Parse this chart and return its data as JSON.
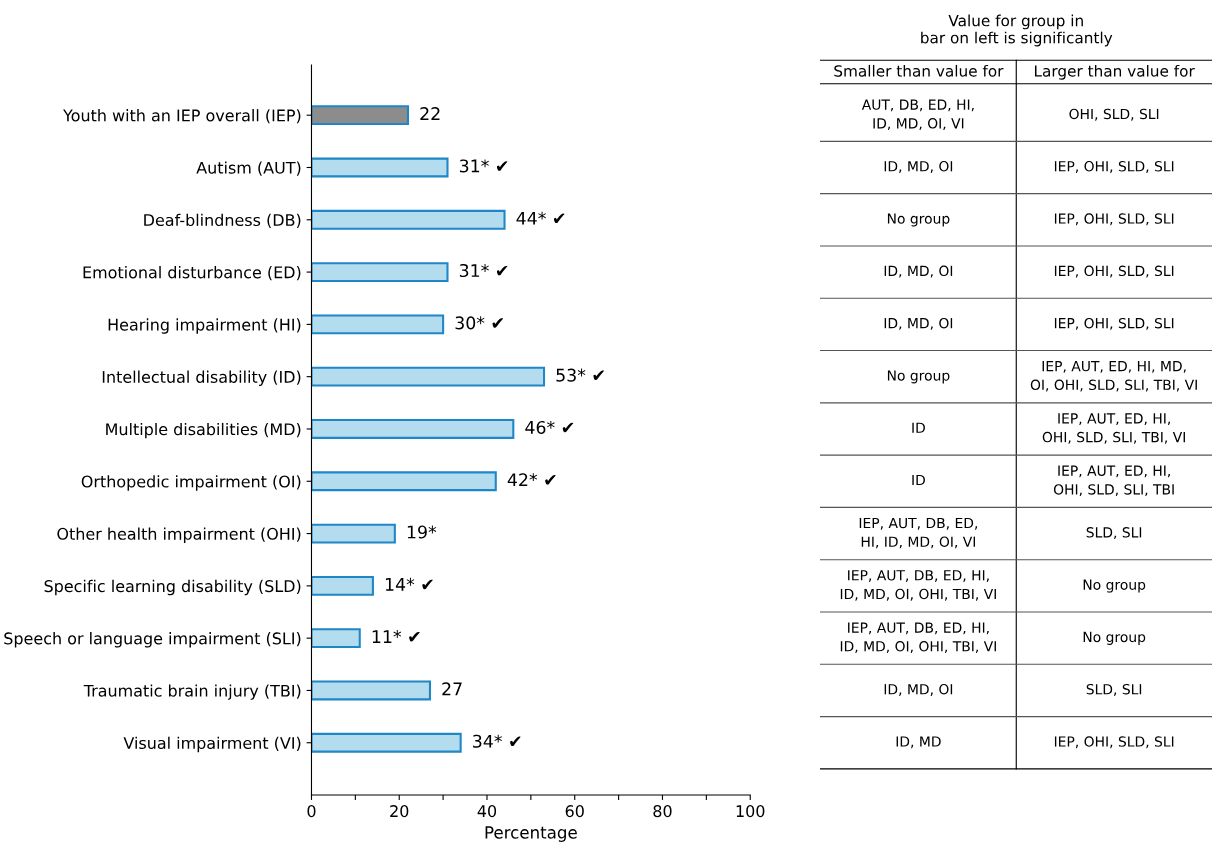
{
  "chart_data": [
    {
      "type": "bar",
      "orientation": "horizontal",
      "xlabel": "Percentage",
      "categories": [
        "Youth with an IEP overall (IEP)",
        "Autism (AUT)",
        "Deaf-blindness (DB)",
        "Emotional disturbance (ED)",
        "Hearing impairment (HI)",
        "Intellectual disability (ID)",
        "Multiple disabilities (MD)",
        "Orthopedic impairment (OI)",
        "Other health impairment (OHI)",
        "Specific learning disability (SLD)",
        "Speech or language impairment (SLI)",
        "Traumatic brain injury (TBI)",
        "Visual impairment (VI)"
      ],
      "values": [
        22,
        31,
        44,
        31,
        30,
        53,
        46,
        42,
        19,
        14,
        11,
        27,
        34
      ],
      "value_labels": [
        "22",
        "31* ✔",
        "44* ✔",
        "31* ✔",
        "30* ✔",
        "53* ✔",
        "46* ✔",
        "42* ✔",
        "19*",
        "14* ✔",
        "11* ✔",
        "27",
        "34* ✔"
      ],
      "colors": [
        "#8c8c8c",
        "#b3dcef",
        "#b3dcef",
        "#b3dcef",
        "#b3dcef",
        "#b3dcef",
        "#b3dcef",
        "#b3dcef",
        "#b3dcef",
        "#b3dcef",
        "#b3dcef",
        "#b3dcef",
        "#b3dcef"
      ],
      "xlim": [
        0,
        100
      ],
      "xticks": [
        0,
        {
          "value": 10,
          "label": null
        },
        20,
        {
          "value": 30,
          "label": null
        },
        40,
        {
          "value": 50,
          "label": null
        },
        60,
        {
          "value": 70,
          "label": null
        },
        80,
        {
          "value": 90,
          "label": null
        },
        100
      ],
      "grid": false,
      "legend": false
    },
    {
      "type": "other",
      "title": "Value for group in\nbar on left is significantly",
      "annotations": [
        "Smaller than value for",
        "Larger than value for",
        "AUT, DB, ED, HI,\nID, MD, OI, VI",
        "OHI, SLD, SLI",
        "ID, MD, OI",
        "IEP, OHI, SLD, SLI",
        "No group",
        "IEP, OHI, SLD, SLI",
        "ID, MD, OI",
        "IEP, OHI, SLD, SLI",
        "ID, MD, OI",
        "IEP, OHI, SLD, SLI",
        "No group",
        "IEP, AUT, ED, HI, MD,\nOI, OHI, SLD, SLI, TBI, VI",
        "ID",
        "IEP, AUT, ED, HI,\nOHI, SLD, SLI, TBI, VI",
        "ID",
        "IEP, AUT, ED, HI,\nOHI, SLD, SLI, TBI",
        "IEP, AUT, DB, ED,\nHI, ID, MD, OI, VI",
        "SLD, SLI",
        "IEP, AUT, DB, ED, HI,\nID, MD, OI, OHI, TBI, VI",
        "No group",
        "IEP, AUT, DB, ED, HI,\nID, MD, OI, OHI, TBI, VI",
        "No group",
        "ID, MD, OI",
        "SLD, SLI",
        "ID, MD",
        "IEP, OHI, SLD, SLI"
      ]
    }
  ]
}
